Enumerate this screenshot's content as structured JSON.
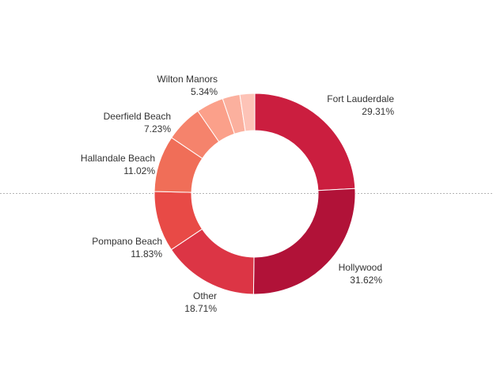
{
  "chart_data": {
    "type": "pie",
    "variant": "donut",
    "title": "",
    "categories": [
      "Fort Lauderdale",
      "Hollywood",
      "Other",
      "Pompano Beach",
      "Hallandale Beach",
      "Deerfield Beach",
      "Wilton Manors",
      "",
      ""
    ],
    "values": [
      29.31,
      31.62,
      18.71,
      11.83,
      11.02,
      7.23,
      5.34,
      3.4,
      2.9
    ],
    "value_labels": [
      "29.31%",
      "31.62%",
      "18.71%",
      "11.83%",
      "11.02%",
      "7.23%",
      "5.34%",
      "",
      ""
    ],
    "colors": [
      "#cb1e3f",
      "#b11238",
      "#dc3545",
      "#e84a46",
      "#f06e58",
      "#f5836c",
      "#fba08a",
      "#fbb09e",
      "#fdc3b7"
    ],
    "legend": "none",
    "reference_line": "horizontal dotted"
  }
}
